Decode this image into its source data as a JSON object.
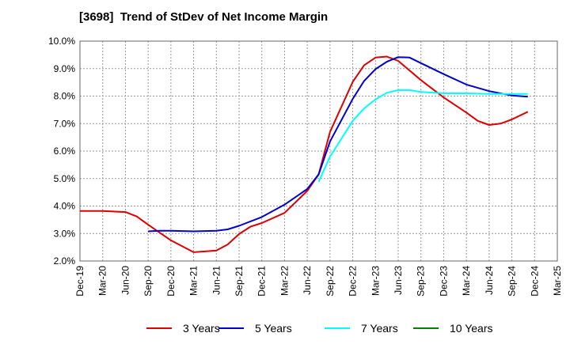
{
  "chart_data": {
    "type": "line",
    "title": "[3698]  Trend of StDev of Net Income Margin",
    "xlabel": "",
    "ylabel": "",
    "x": [
      "Dec-19",
      "Mar-20",
      "Jun-20",
      "Sep-20",
      "Dec-20",
      "Mar-21",
      "Jun-21",
      "Sep-21",
      "Dec-21",
      "Mar-22",
      "Jun-22",
      "Sep-22",
      "Dec-22",
      "Mar-23",
      "Jun-23",
      "Sep-23",
      "Dec-23",
      "Mar-24",
      "Jun-24",
      "Sep-24",
      "Dec-24",
      "Mar-25"
    ],
    "y_ticks": [
      "2.0%",
      "3.0%",
      "4.0%",
      "5.0%",
      "6.0%",
      "7.0%",
      "8.0%",
      "9.0%",
      "10.0%"
    ],
    "ylim": [
      2.0,
      10.0
    ],
    "y_unit": "%",
    "grid": true,
    "legend_position": "bottom",
    "series": [
      {
        "name": "3 Years",
        "color": "#dd0000",
        "points": [
          [
            0,
            3.82
          ],
          [
            1,
            3.82
          ],
          [
            2,
            3.78
          ],
          [
            2.5,
            3.62
          ],
          [
            3,
            3.32
          ],
          [
            4,
            2.75
          ],
          [
            5,
            2.32
          ],
          [
            6,
            2.38
          ],
          [
            6.5,
            2.6
          ],
          [
            7,
            2.98
          ],
          [
            7.5,
            3.25
          ],
          [
            8,
            3.38
          ],
          [
            9,
            3.75
          ],
          [
            10,
            4.55
          ],
          [
            10.5,
            5.15
          ],
          [
            11,
            6.7
          ],
          [
            12,
            8.52
          ],
          [
            12.5,
            9.12
          ],
          [
            13,
            9.4
          ],
          [
            13.5,
            9.44
          ],
          [
            14,
            9.28
          ],
          [
            15,
            8.58
          ],
          [
            16,
            7.95
          ],
          [
            17,
            7.4
          ],
          [
            17.5,
            7.1
          ],
          [
            18,
            6.95
          ],
          [
            18.5,
            7.0
          ],
          [
            19,
            7.15
          ],
          [
            19.7,
            7.43
          ]
        ]
      },
      {
        "name": "5 Years",
        "color": "#0000cc",
        "points": [
          [
            3,
            3.08
          ],
          [
            3.5,
            3.1
          ],
          [
            4,
            3.1
          ],
          [
            5,
            3.08
          ],
          [
            6,
            3.1
          ],
          [
            6.5,
            3.15
          ],
          [
            7,
            3.28
          ],
          [
            8,
            3.6
          ],
          [
            9,
            4.05
          ],
          [
            10,
            4.62
          ],
          [
            10.5,
            5.15
          ],
          [
            11,
            6.35
          ],
          [
            12,
            7.9
          ],
          [
            12.5,
            8.55
          ],
          [
            13,
            8.98
          ],
          [
            13.5,
            9.25
          ],
          [
            14,
            9.42
          ],
          [
            14.5,
            9.4
          ],
          [
            15,
            9.2
          ],
          [
            16,
            8.8
          ],
          [
            17,
            8.42
          ],
          [
            18,
            8.18
          ],
          [
            19,
            8.02
          ],
          [
            19.7,
            7.98
          ]
        ]
      },
      {
        "name": "7 Years",
        "color": "#00ffff",
        "points": [
          [
            10.5,
            4.88
          ],
          [
            11,
            5.8
          ],
          [
            12,
            7.1
          ],
          [
            12.5,
            7.55
          ],
          [
            13,
            7.88
          ],
          [
            13.5,
            8.12
          ],
          [
            14,
            8.22
          ],
          [
            14.5,
            8.22
          ],
          [
            15,
            8.15
          ],
          [
            16,
            8.1
          ],
          [
            17,
            8.1
          ],
          [
            18,
            8.08
          ],
          [
            19,
            8.08
          ],
          [
            19.7,
            8.08
          ]
        ]
      },
      {
        "name": "10 Years",
        "color": "#008000",
        "points": []
      }
    ]
  }
}
